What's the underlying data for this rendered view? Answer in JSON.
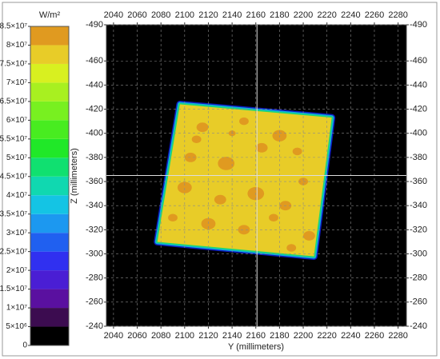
{
  "chart_data": {
    "type": "heatmap",
    "x_label": "Y (millimeters)",
    "y_label": "Z (millimeters)",
    "xlim": [
      2034,
      2287
    ],
    "xticks": [
      2040,
      2060,
      2080,
      2100,
      2120,
      2140,
      2160,
      2180,
      2200,
      2220,
      2240,
      2260,
      2280
    ],
    "ylim": [
      -240,
      -490
    ],
    "yticks": [
      -490,
      -460,
      -440,
      -420,
      -400,
      -380,
      -360,
      -340,
      -320,
      -300,
      -280,
      -260,
      -240
    ],
    "grid": true,
    "background": "#000000",
    "region": {
      "x": [
        2096,
        2224,
        2209,
        2077
      ],
      "y": [
        -424,
        -413,
        -298,
        -310
      ],
      "value": 78000000
    },
    "spots": {
      "x": [
        2115,
        2150,
        2180,
        2195,
        2105,
        2135,
        2165,
        2200,
        2100,
        2130,
        2160,
        2185,
        2090,
        2120,
        2150,
        2175,
        2205,
        2140,
        2110,
        2190
      ],
      "y": [
        -405,
        -410,
        -398,
        -385,
        -380,
        -375,
        -388,
        -360,
        -355,
        -345,
        -350,
        -340,
        -330,
        -325,
        -320,
        -330,
        -315,
        -400,
        -395,
        -305
      ],
      "r": [
        5,
        4,
        6,
        4,
        5,
        7,
        5,
        4,
        6,
        5,
        7,
        5,
        4,
        6,
        5,
        4,
        5,
        3,
        4,
        4
      ],
      "value": 82000000
    },
    "cursor": {
      "x": 2161,
      "y": -365
    },
    "colorbar": {
      "title": "W/m²",
      "clim": [
        0,
        85000000
      ],
      "ticks": [
        0,
        {
          "value": 5000000,
          "label": "5×10⁶"
        },
        {
          "value": 10000000,
          "label": "1×10⁷"
        },
        {
          "value": 15000000,
          "label": "1.5×10⁷"
        },
        {
          "value": 20000000,
          "label": "2×10⁷"
        },
        {
          "value": 25000000,
          "label": "2.5×10⁷"
        },
        {
          "value": 30000000,
          "label": "3×10⁷"
        },
        {
          "value": 35000000,
          "label": "3.5×10⁷"
        },
        {
          "value": 40000000,
          "label": "4×10⁷"
        },
        {
          "value": 45000000,
          "label": "4.5×10⁷"
        },
        {
          "value": 50000000,
          "label": "5×10⁷"
        },
        {
          "value": 55000000,
          "label": "5.5×10⁷"
        },
        {
          "value": 60000000,
          "label": "6×10⁷"
        },
        {
          "value": 65000000,
          "label": "6.5×10⁷"
        },
        {
          "value": 70000000,
          "label": "7×10⁷"
        },
        {
          "value": 75000000,
          "label": "7.5×10⁷"
        },
        {
          "value": 80000000,
          "label": "8×10⁷"
        },
        {
          "value": 85000000,
          "label": "8.5×10⁷"
        }
      ],
      "colors": [
        "#000000",
        "#3c0c50",
        "#5a10a0",
        "#4a1ed4",
        "#3030f0",
        "#2060f0",
        "#1c98f0",
        "#14c4e4",
        "#10d8b0",
        "#10e070",
        "#20e828",
        "#48ec20",
        "#78f020",
        "#a8f020",
        "#d8f020",
        "#e8cc28",
        "#e09a20"
      ]
    }
  }
}
